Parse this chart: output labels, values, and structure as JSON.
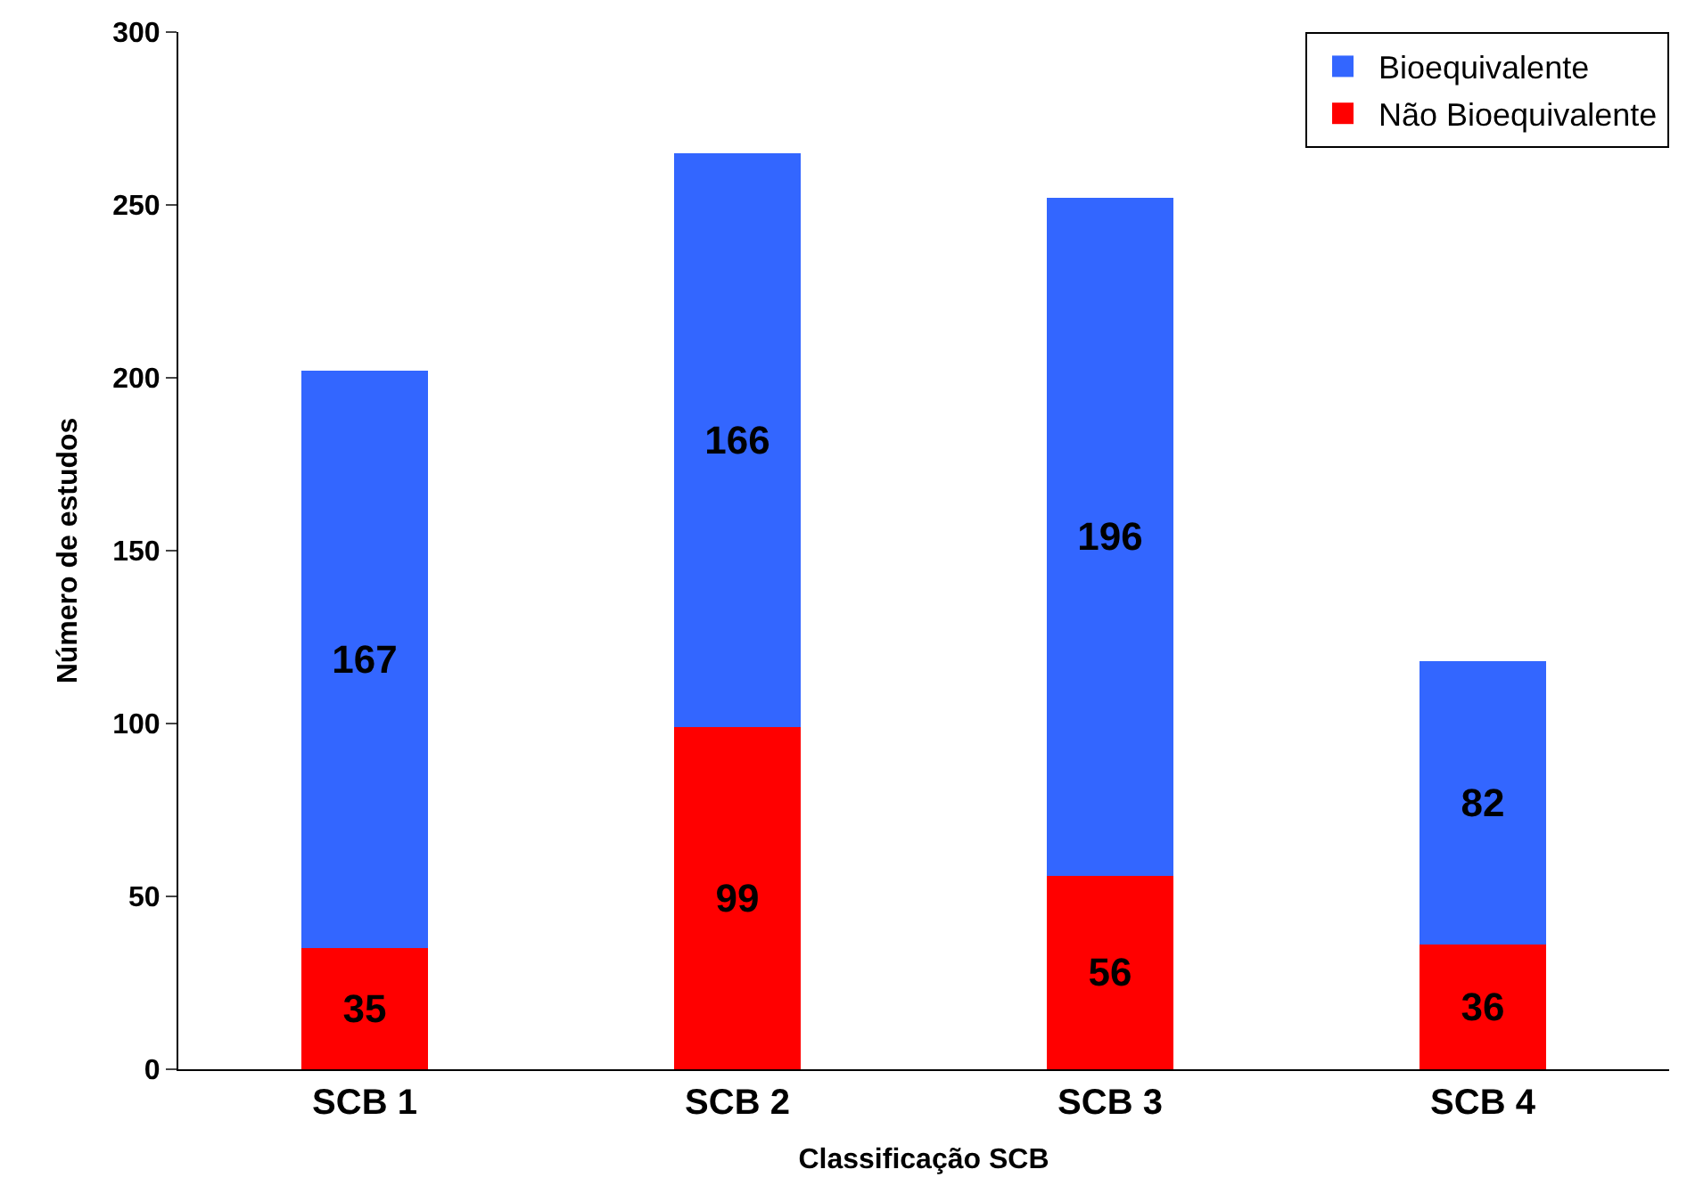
{
  "chart_data": {
    "type": "bar",
    "stacked": true,
    "xlabel": "Classificação SCB",
    "ylabel": "Número de estudos",
    "categories": [
      "SCB 1",
      "SCB 2",
      "SCB 3",
      "SCB 4"
    ],
    "series": [
      {
        "name": "Não Bioequivalente",
        "color": "#ff0000",
        "values": [
          35,
          99,
          56,
          36
        ]
      },
      {
        "name": "Bioequivalente",
        "color": "#3366ff",
        "values": [
          167,
          166,
          196,
          82
        ]
      }
    ],
    "ylim": [
      0,
      300
    ],
    "yticks": [
      0,
      50,
      100,
      150,
      200,
      250,
      300
    ],
    "legend": "top right",
    "data_labels": true
  }
}
